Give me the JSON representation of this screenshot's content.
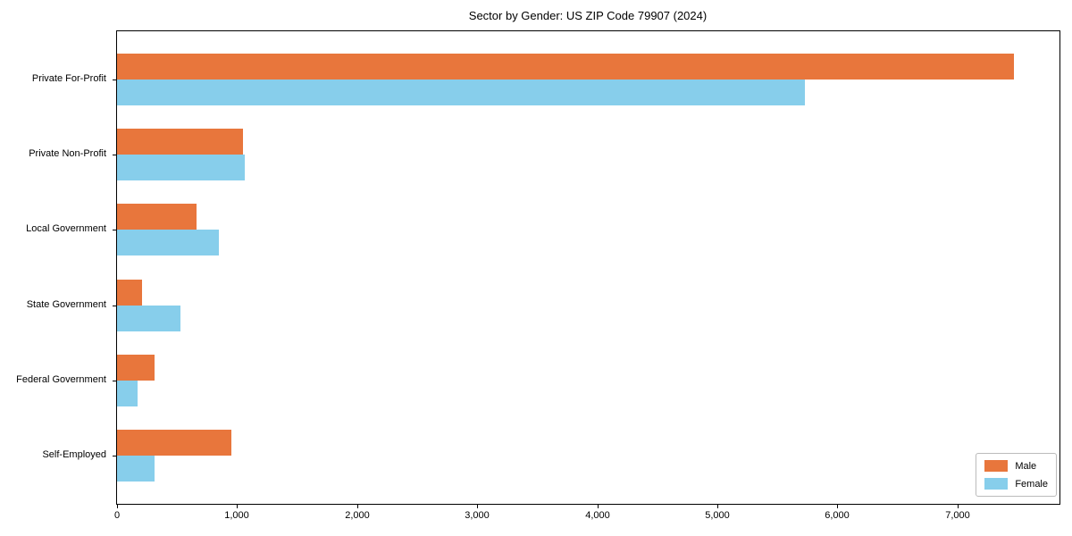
{
  "chart_data": {
    "type": "bar",
    "orientation": "horizontal",
    "title": "Sector by Gender: US ZIP Code 79907 (2024)",
    "xlabel": "",
    "ylabel": "",
    "categories": [
      "Private For-Profit",
      "Private Non-Profit",
      "Local Government",
      "State Government",
      "Federal Government",
      "Self-Employed"
    ],
    "series": [
      {
        "name": "Male",
        "color": "#e8763c",
        "values": [
          7470,
          1050,
          665,
          205,
          315,
          955
        ]
      },
      {
        "name": "Female",
        "color": "#87ceeb",
        "values": [
          5730,
          1060,
          845,
          530,
          170,
          315
        ]
      }
    ],
    "xlim": [
      0,
      7850
    ],
    "xticks": {
      "values": [
        0,
        1000,
        2000,
        3000,
        4000,
        5000,
        6000,
        7000
      ],
      "labels": [
        "0",
        "1,000",
        "2,000",
        "3,000",
        "4,000",
        "5,000",
        "6,000",
        "7,000"
      ]
    },
    "grid": false,
    "legend": {
      "position": "lower right",
      "labels": [
        "Male",
        "Female"
      ]
    }
  }
}
